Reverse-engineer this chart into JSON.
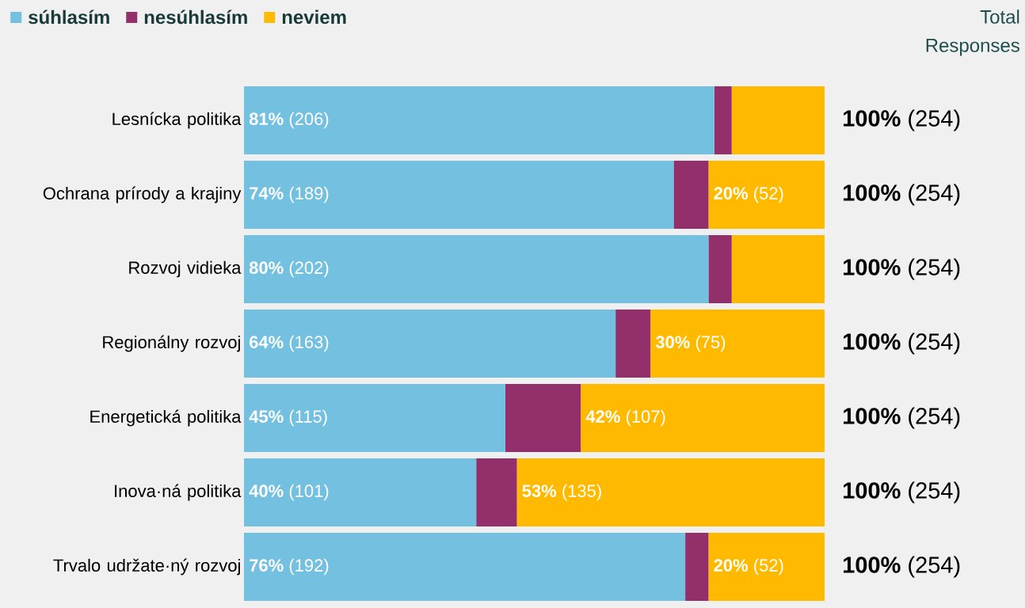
{
  "chart_data": {
    "type": "bar",
    "orientation": "horizontal",
    "stacked": true,
    "legend": "top left",
    "categories": [
      "Lesnícka politika",
      "Ochrana prírody a krajiny",
      "Rozvoj vidieka",
      "Regionálny rozvoj",
      "Energetická politika",
      "Inova·ná politika",
      "Trvalo udržate·ný rozvoj"
    ],
    "series": [
      {
        "name": "súhlasím",
        "color": "#74c0e0",
        "values": [
          81,
          74,
          80,
          64,
          45,
          40,
          76
        ],
        "value_labels": [
          "**81%** (206)",
          "**74%** (189)",
          "**80%** (202)",
          "**64%** (163)",
          "**45%** (115)",
          "**40%** (101)",
          "**76%** (192)"
        ]
      },
      {
        "name": "nesúhlasím",
        "color": "#93306b",
        "values": [
          3,
          6,
          4,
          6,
          13,
          7,
          4
        ]
      },
      {
        "name": "neviem",
        "color": "#ffba00",
        "values": [
          16,
          20,
          16,
          30,
          42,
          53,
          20
        ],
        "value_labels": [
          null,
          "**20%** (52)",
          null,
          "**30%** (75)",
          "**42%** (107)",
          "**53%** (135)",
          "**20%** (52)"
        ]
      }
    ],
    "totals": [
      "**100%** (254)",
      "**100%** (254)",
      "**100%** (254)",
      "**100%** (254)",
      "**100%** (254)",
      "**100%** (254)",
      "**100%** (254)"
    ],
    "annotations": [
      "Total Responses"
    ]
  }
}
